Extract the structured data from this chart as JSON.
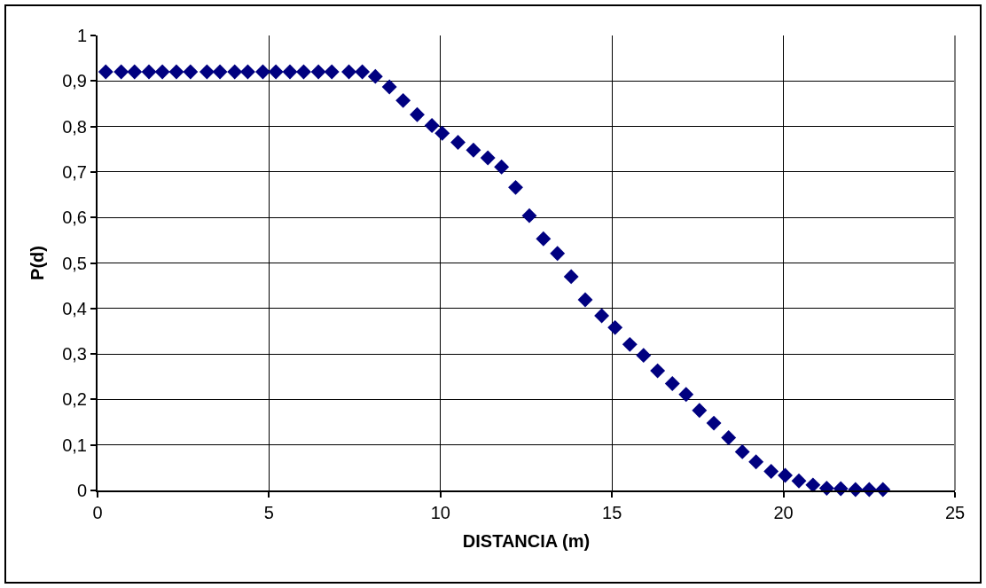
{
  "chart_data": {
    "type": "scatter",
    "xlabel": "DISTANCIA (m)",
    "ylabel": "P(d)",
    "xlim": [
      0,
      25
    ],
    "xticks": [
      0,
      5,
      10,
      15,
      20,
      25
    ],
    "ylim": [
      0,
      1
    ],
    "yticks": [
      0,
      {
        "value": 0.1,
        "label": "0,1"
      },
      {
        "value": 0.2,
        "label": "0,2"
      },
      {
        "value": 0.3,
        "label": "0,3"
      },
      {
        "value": 0.4,
        "label": "0,4"
      },
      {
        "value": 0.5,
        "label": "0,5"
      },
      {
        "value": 0.6,
        "label": "0,6"
      },
      {
        "value": 0.7,
        "label": "0,7"
      },
      {
        "value": 0.8,
        "label": "0,8"
      },
      {
        "value": 0.9,
        "label": "0,9"
      },
      1
    ],
    "grid": true,
    "marker": "diamond",
    "series": [
      {
        "color": "#000080",
        "x": [
          0.24,
          0.69,
          1.08,
          1.5,
          1.89,
          2.3,
          2.71,
          3.19,
          3.57,
          4.0,
          4.38,
          4.82,
          5.2,
          5.61,
          6.01,
          6.44,
          6.83,
          7.33,
          7.72,
          8.1,
          8.51,
          8.91,
          9.32,
          9.75,
          10.05,
          10.51,
          10.96,
          11.38,
          11.78,
          12.19,
          12.59,
          13.0,
          13.41,
          13.81,
          14.22,
          14.7,
          15.09,
          15.52,
          15.92,
          16.33,
          16.76,
          17.16,
          17.55,
          17.97,
          18.4,
          18.8,
          19.2,
          19.64,
          20.05,
          20.45,
          20.86,
          21.26,
          21.67,
          22.1,
          22.5,
          22.9
        ],
        "values": [
          0.92,
          0.92,
          0.92,
          0.92,
          0.92,
          0.92,
          0.92,
          0.92,
          0.92,
          0.92,
          0.92,
          0.92,
          0.92,
          0.92,
          0.92,
          0.92,
          0.92,
          0.92,
          0.92,
          0.91,
          0.887,
          0.857,
          0.826,
          0.802,
          0.785,
          0.765,
          0.748,
          0.731,
          0.711,
          0.666,
          0.604,
          0.553,
          0.521,
          0.47,
          0.419,
          0.384,
          0.358,
          0.321,
          0.297,
          0.263,
          0.235,
          0.211,
          0.176,
          0.148,
          0.116,
          0.085,
          0.063,
          0.042,
          0.033,
          0.021,
          0.012,
          0.005,
          0.004,
          0.002,
          0.002,
          0.002
        ]
      }
    ]
  }
}
